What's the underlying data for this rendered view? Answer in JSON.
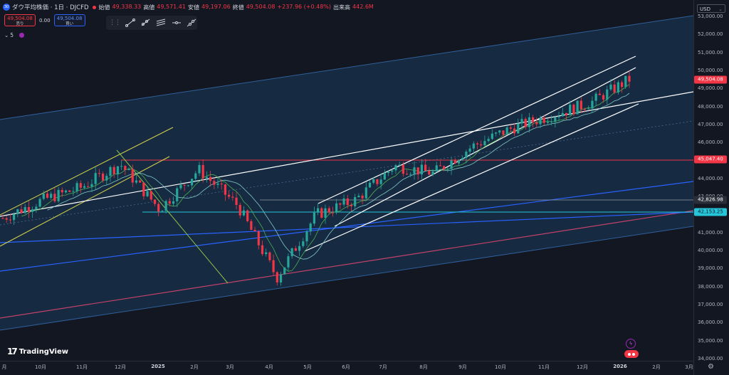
{
  "header": {
    "symbol_icon": "30",
    "title": "ダウ平均株価 · 1日 · DJCFD",
    "ohlc": [
      {
        "key": "始値",
        "value": "49,338.33"
      },
      {
        "key": "高値",
        "value": "49,571.41"
      },
      {
        "key": "安値",
        "value": "49,197.06"
      },
      {
        "key": "終値",
        "value": "49,504.08"
      }
    ],
    "change": "+237.96 (+0.48%)",
    "volume_label": "出来高",
    "volume_value": "442.6M"
  },
  "trade": {
    "sell_price": "49,504.08",
    "sell_label": "売り",
    "spread": "0.00",
    "buy_price": "49,504.08",
    "buy_label": "買い"
  },
  "indicators": {
    "collapse_count": "5"
  },
  "drawing_toolbar": {
    "tools": [
      "trend-line-icon",
      "ray-icon",
      "parallel-channel-icon",
      "horizontal-line-icon",
      "extended-line-icon"
    ]
  },
  "price_axis": {
    "currency": "USD",
    "labels": [
      "53,000.00",
      "52,000.00",
      "51,000.00",
      "50,000.00",
      "49,000.00",
      "48,000.00",
      "47,000.00",
      "46,000.00",
      "44,000.00",
      "43,000.00",
      "41,000.00",
      "40,000.00",
      "39,000.00",
      "38,000.00",
      "37,000.00",
      "36,000.00",
      "35,000.00",
      "34,000.00"
    ],
    "badges": [
      {
        "value": "49,504.08",
        "color": "#f23645"
      },
      {
        "value": "45,047.40",
        "color": "#f23645"
      },
      {
        "value": "42,826.98",
        "color": "#2a2e39"
      },
      {
        "value": "42,153.25",
        "color": "#26c6da"
      }
    ]
  },
  "time_axis": {
    "labels": [
      {
        "text": "月",
        "bold": false
      },
      {
        "text": "10月",
        "bold": false
      },
      {
        "text": "11月",
        "bold": false
      },
      {
        "text": "12月",
        "bold": false
      },
      {
        "text": "2025",
        "bold": true
      },
      {
        "text": "2月",
        "bold": false
      },
      {
        "text": "3月",
        "bold": false
      },
      {
        "text": "4月",
        "bold": false
      },
      {
        "text": "5月",
        "bold": false
      },
      {
        "text": "6月",
        "bold": false
      },
      {
        "text": "7月",
        "bold": false
      },
      {
        "text": "8月",
        "bold": false
      },
      {
        "text": "9月",
        "bold": false
      },
      {
        "text": "10月",
        "bold": false
      },
      {
        "text": "11月",
        "bold": false
      },
      {
        "text": "12月",
        "bold": false
      },
      {
        "text": "2026",
        "bold": true
      },
      {
        "text": "2月",
        "bold": false
      },
      {
        "text": "3月",
        "bold": false
      }
    ]
  },
  "logo": {
    "mark": "17",
    "text": "TradingView"
  },
  "colors": {
    "up": "#26a69a",
    "down": "#f23645",
    "background": "#131722",
    "channel_fill": "#1a3a5c"
  },
  "chart_data": {
    "type": "candlestick",
    "ylim": [
      34000,
      53000
    ],
    "x_ticks": [
      "10月",
      "11月",
      "12月",
      "2025",
      "2月",
      "3月",
      "4月",
      "5月",
      "6月",
      "7月",
      "8月",
      "9月",
      "10月",
      "11月",
      "12月",
      "2026",
      "2月",
      "3月"
    ],
    "close_path_approx": [
      {
        "period": "9月",
        "close": 41800
      },
      {
        "period": "10月",
        "close": 42800
      },
      {
        "period": "11月",
        "close": 43500
      },
      {
        "period": "12月",
        "close": 44800
      },
      {
        "period": "2025",
        "close": 42300
      },
      {
        "period": "2月",
        "close": 44500
      },
      {
        "period": "3月",
        "close": 42500
      },
      {
        "period": "4月",
        "close": 38500
      },
      {
        "period": "5月",
        "close": 42000
      },
      {
        "period": "6月",
        "close": 42800
      },
      {
        "period": "7月",
        "close": 44700
      },
      {
        "period": "8月",
        "close": 44300
      },
      {
        "period": "9月",
        "close": 45800
      },
      {
        "period": "10月",
        "close": 46800
      },
      {
        "period": "11月",
        "close": 47500
      },
      {
        "period": "12月",
        "close": 48200
      },
      {
        "period": "2026",
        "close": 49504.08
      }
    ],
    "horizontal_levels": [
      45047.4,
      42826.98,
      42153.25
    ]
  }
}
